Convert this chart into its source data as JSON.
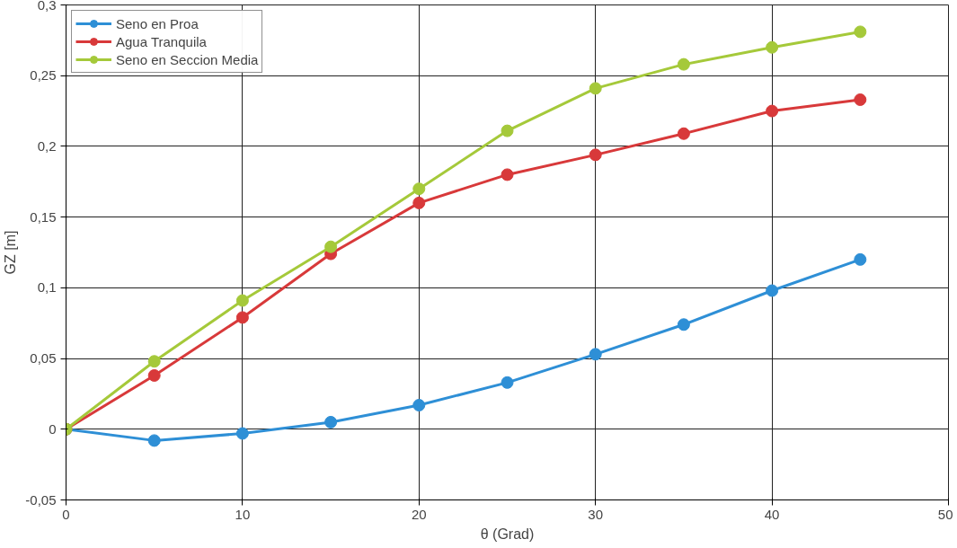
{
  "chart_data": {
    "type": "line",
    "xlabel": "θ (Grad)",
    "ylabel": "GZ [m]",
    "x": [
      0,
      5,
      10,
      15,
      20,
      25,
      30,
      35,
      40,
      45
    ],
    "series": [
      {
        "name": "Seno en Proa",
        "color": "#2e8fd6",
        "values": [
          0,
          -0.008,
          -0.003,
          0.005,
          0.017,
          0.033,
          0.053,
          0.074,
          0.098,
          0.12
        ]
      },
      {
        "name": "Agua Tranquila",
        "color": "#d8393a",
        "values": [
          0,
          0.038,
          0.079,
          0.124,
          0.16,
          0.18,
          0.194,
          0.209,
          0.225,
          0.233
        ]
      },
      {
        "name": "Seno en Seccion Media",
        "color": "#a5c93a",
        "values": [
          0,
          0.048,
          0.091,
          0.129,
          0.17,
          0.211,
          0.241,
          0.258,
          0.27,
          0.281
        ]
      }
    ],
    "xlim": [
      0,
      50
    ],
    "xticks": [
      0,
      10,
      20,
      30,
      40,
      50
    ],
    "ylim": [
      -0.05,
      0.3
    ],
    "yticks": [
      {
        "value": -0.05,
        "label": "-0,05"
      },
      {
        "value": 0,
        "label": "0"
      },
      {
        "value": 0.05,
        "label": "0,05"
      },
      {
        "value": 0.1,
        "label": "0,1"
      },
      {
        "value": 0.15,
        "label": "0,15"
      },
      {
        "value": 0.2,
        "label": "0,2"
      },
      {
        "value": 0.25,
        "label": "0,25"
      },
      {
        "value": 0.3,
        "label": "0,3"
      }
    ],
    "grid": true,
    "legend": "top left",
    "marker": "circle",
    "line_style": "solid"
  }
}
